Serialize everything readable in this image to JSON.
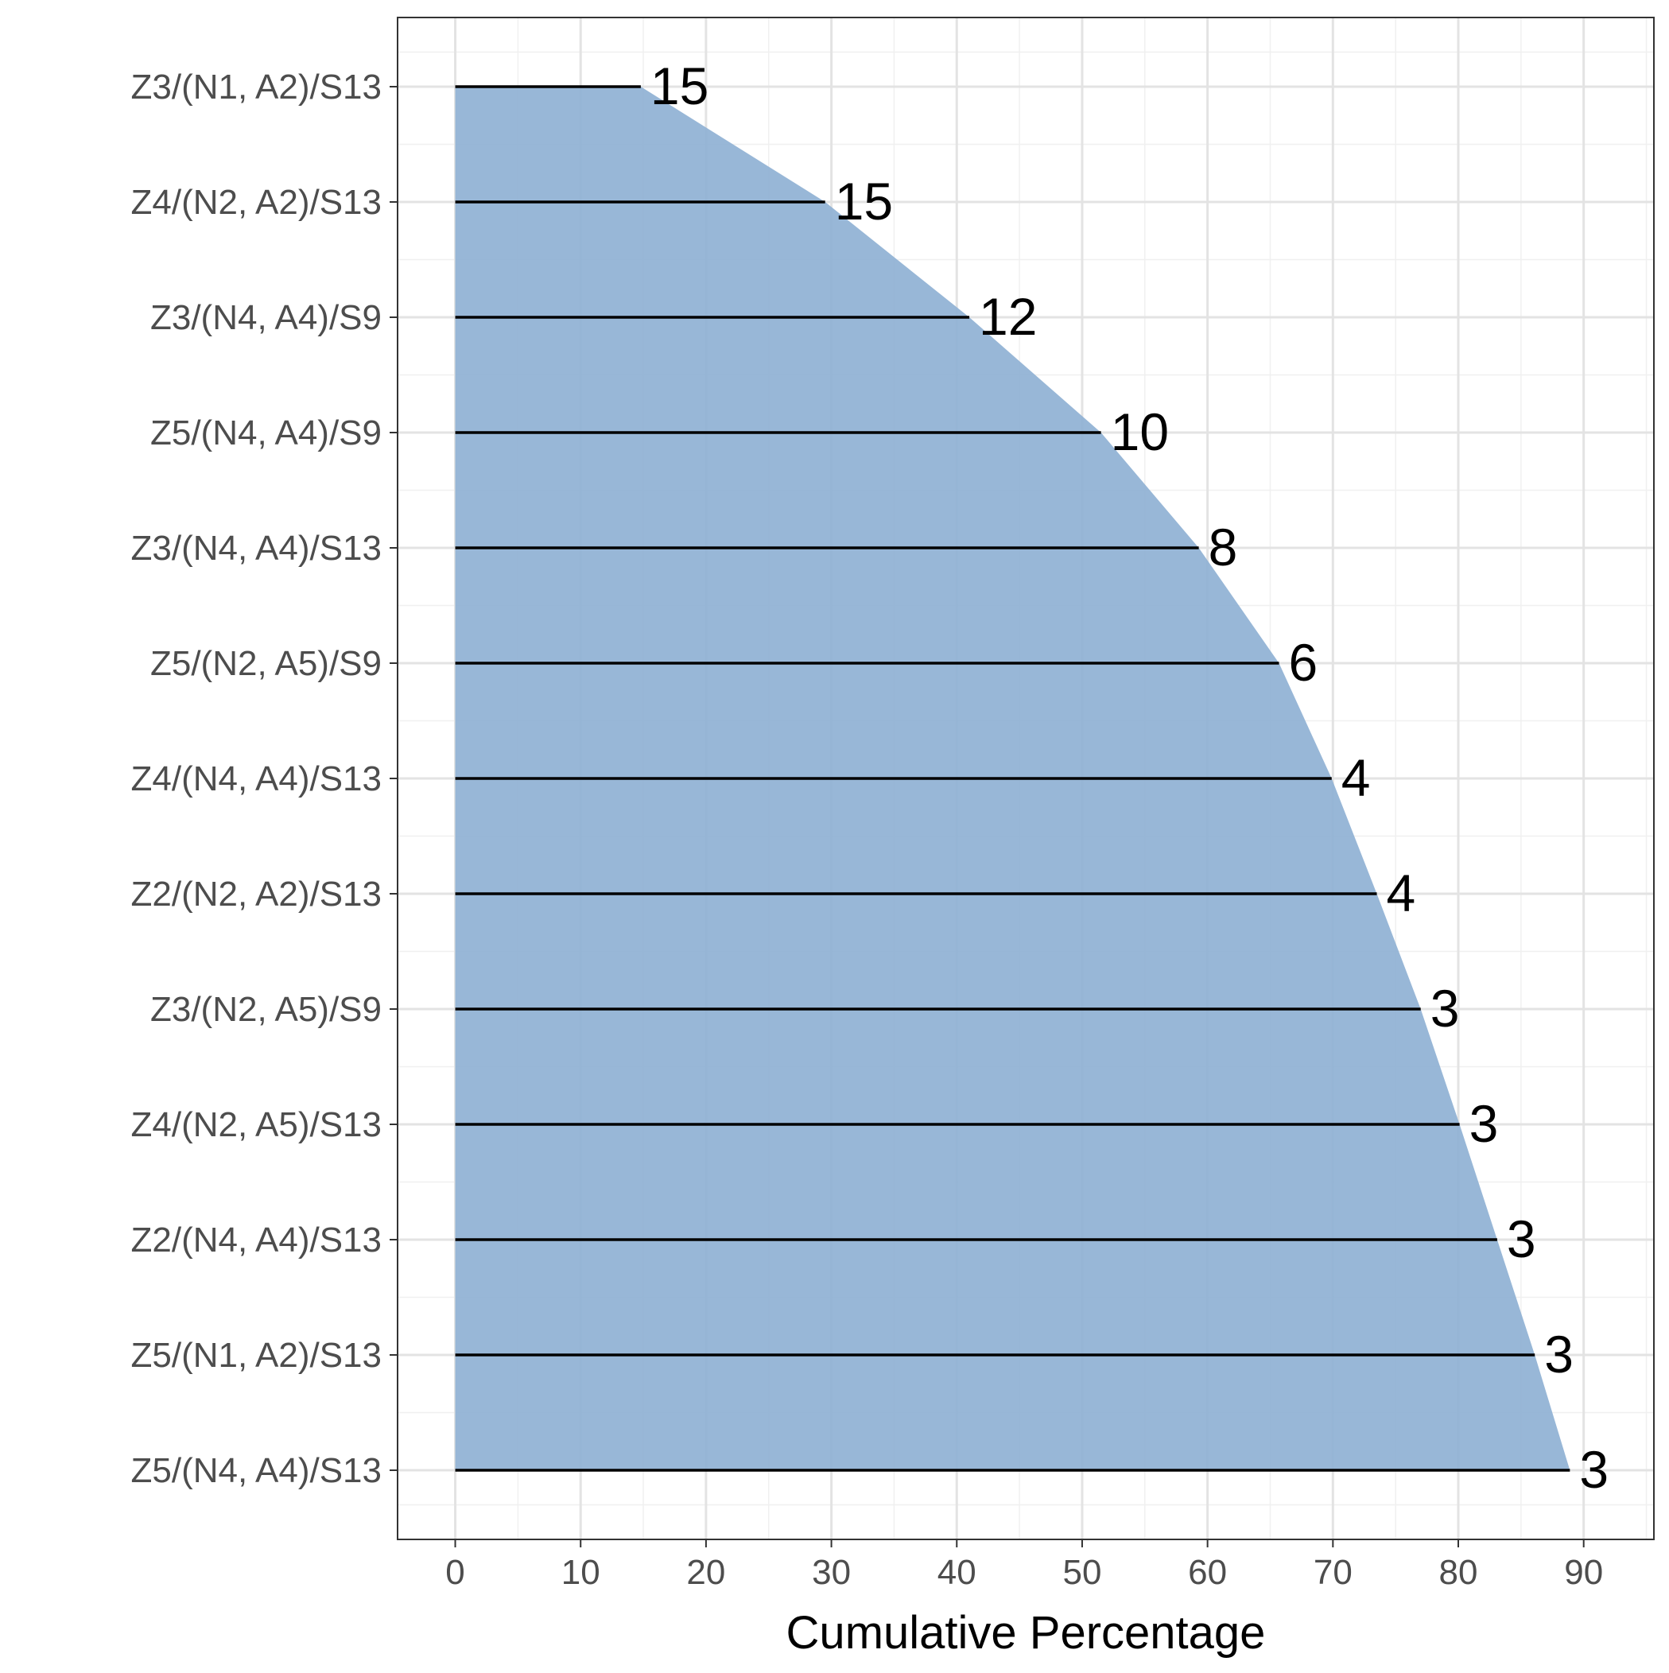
{
  "chart_data": {
    "type": "area",
    "title": "",
    "xlabel": "Cumulative Percentage",
    "ylabel": "",
    "xlim": [
      -4.6,
      95.6
    ],
    "x_ticks": [
      0,
      10,
      20,
      30,
      40,
      50,
      60,
      70,
      80,
      90
    ],
    "grid": true,
    "legend": "none",
    "fill_color": "#8dafd3",
    "segment_color": "#000000",
    "categories": [
      "Z3/(N1, A2)/S13",
      "Z4/(N2, A2)/S13",
      "Z3/(N4, A4)/S9",
      "Z5/(N4, A4)/S9",
      "Z3/(N4, A4)/S13",
      "Z5/(N2, A5)/S9",
      "Z4/(N4, A4)/S13",
      "Z2/(N2, A2)/S13",
      "Z3/(N2, A5)/S9",
      "Z4/(N2, A5)/S13",
      "Z2/(N4, A4)/S13",
      "Z5/(N1, A2)/S13",
      "Z5/(N4, A4)/S13"
    ],
    "values": [
      14.8,
      29.5,
      41.0,
      51.5,
      59.3,
      65.7,
      69.9,
      73.5,
      77.0,
      80.1,
      83.1,
      86.1,
      88.9
    ],
    "labels": [
      "15",
      "15",
      "12",
      "10",
      "8",
      "6",
      "4",
      "4",
      "3",
      "3",
      "3",
      "3",
      "3"
    ]
  }
}
